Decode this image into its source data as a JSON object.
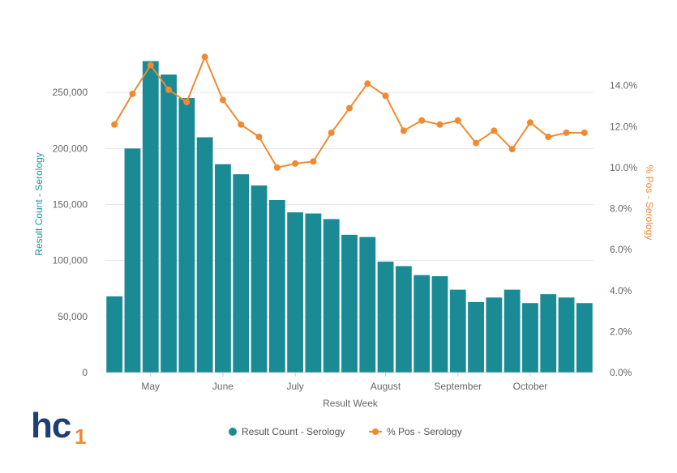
{
  "chart_data": {
    "type": "bar",
    "xlabel": "Result Week",
    "month_labels": [
      "May",
      "June",
      "July",
      "August",
      "September",
      "October"
    ],
    "grid": true,
    "legend_position": "bottom-center",
    "series": [
      {
        "name": "Result Count - Serology",
        "type": "bar",
        "axis": "left",
        "color": "#1a8a94",
        "values": [
          68000,
          200000,
          278000,
          266000,
          245000,
          210000,
          186000,
          177000,
          167000,
          154000,
          143000,
          142000,
          137000,
          123000,
          121000,
          99000,
          95000,
          87000,
          86000,
          74000,
          63000,
          67000,
          74000,
          62000,
          70000,
          67000,
          62000
        ]
      },
      {
        "name": "% Pos - Serology",
        "type": "line",
        "axis": "right",
        "color": "#f08a30",
        "values": [
          12.1,
          13.6,
          15.0,
          13.8,
          13.2,
          15.4,
          13.3,
          12.1,
          11.5,
          10.0,
          10.2,
          10.3,
          11.7,
          12.9,
          14.1,
          13.5,
          11.8,
          12.3,
          12.1,
          12.3,
          11.2,
          11.8,
          10.9,
          12.2,
          11.5,
          11.7,
          11.7
        ]
      }
    ],
    "y_left": {
      "label": "Result Count - Serology",
      "range": [
        0,
        300000
      ],
      "ticks": [
        0,
        50000,
        100000,
        150000,
        200000,
        250000
      ],
      "tick_labels": [
        "0",
        "50,000",
        "100,000",
        "150,000",
        "200,000",
        "250,000"
      ]
    },
    "y_right": {
      "label": "% Pos - Serology",
      "range": [
        0,
        16.4
      ],
      "ticks": [
        0,
        2,
        4,
        6,
        8,
        10,
        12,
        14
      ],
      "tick_labels": [
        "0.0%",
        "2.0%",
        "4.0%",
        "6.0%",
        "8.0%",
        "10.0%",
        "12.0%",
        "14.0%"
      ]
    }
  },
  "logo": {
    "text_main": "hc",
    "text_sub": "1"
  }
}
